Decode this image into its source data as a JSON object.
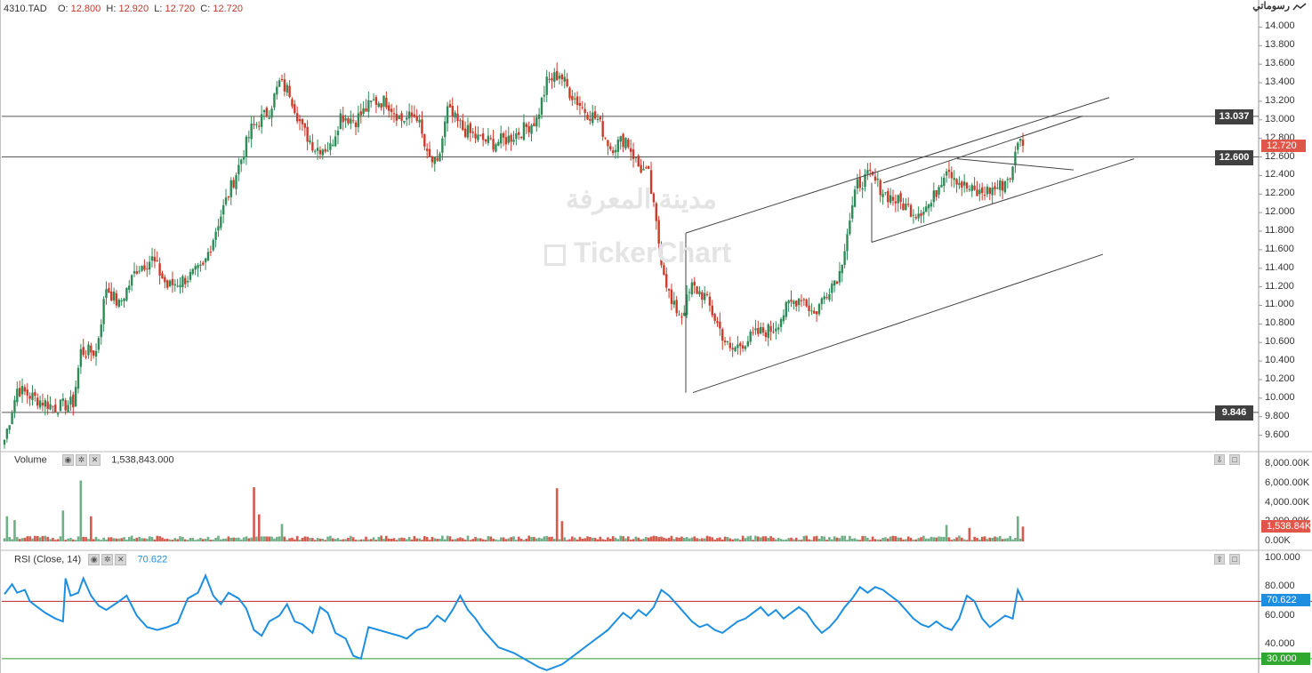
{
  "header": {
    "symbol": "4310.TAD",
    "open_label": "O:",
    "open": "12.800",
    "high_label": "H:",
    "high": "12.920",
    "low_label": "L:",
    "low": "12.720",
    "close_label": "C:",
    "close": "12.720"
  },
  "logo": {
    "text": "رسوماتي",
    "icon": "chart-line-icon"
  },
  "watermark": {
    "arabic": "مدينة المعرفة",
    "brand": "TickerChart",
    "icon": "tickerchart-logo-icon"
  },
  "chart_data": [
    {
      "type": "candlestick",
      "title": "",
      "price_axis": {
        "ticks": [
          "14.000",
          "13.800",
          "13.600",
          "13.400",
          "13.200",
          "13.000",
          "12.800",
          "12.600",
          "12.400",
          "12.200",
          "12.000",
          "11.800",
          "11.600",
          "11.400",
          "11.200",
          "11.000",
          "10.800",
          "10.600",
          "10.400",
          "10.200",
          "10.000",
          "9.800",
          "9.600"
        ],
        "range": [
          9.5,
          14.1
        ]
      },
      "horizontal_lines": [
        {
          "label": "13.037",
          "value": 13.037
        },
        {
          "label": "12.600",
          "value": 12.6
        },
        {
          "label": "9.846",
          "value": 9.846
        }
      ],
      "last_price": {
        "label": "12.720",
        "value": 12.72
      },
      "anchors": [
        {
          "i": 0,
          "c": 9.55
        },
        {
          "i": 5,
          "c": 10.1
        },
        {
          "i": 12,
          "c": 10.0
        },
        {
          "i": 20,
          "c": 9.9
        },
        {
          "i": 27,
          "c": 9.95
        },
        {
          "i": 30,
          "c": 10.5
        },
        {
          "i": 36,
          "c": 10.5
        },
        {
          "i": 40,
          "c": 11.2
        },
        {
          "i": 45,
          "c": 11.0
        },
        {
          "i": 52,
          "c": 11.4
        },
        {
          "i": 58,
          "c": 11.5
        },
        {
          "i": 64,
          "c": 11.2
        },
        {
          "i": 72,
          "c": 11.3
        },
        {
          "i": 78,
          "c": 11.4
        },
        {
          "i": 84,
          "c": 11.9
        },
        {
          "i": 92,
          "c": 12.5
        },
        {
          "i": 97,
          "c": 12.9
        },
        {
          "i": 104,
          "c": 13.1
        },
        {
          "i": 108,
          "c": 13.4
        },
        {
          "i": 112,
          "c": 13.3
        },
        {
          "i": 117,
          "c": 12.9
        },
        {
          "i": 122,
          "c": 12.7
        },
        {
          "i": 128,
          "c": 12.7
        },
        {
          "i": 132,
          "c": 13.05
        },
        {
          "i": 138,
          "c": 13.0
        },
        {
          "i": 145,
          "c": 13.2
        },
        {
          "i": 150,
          "c": 13.2
        },
        {
          "i": 156,
          "c": 13.0
        },
        {
          "i": 162,
          "c": 13.05
        },
        {
          "i": 166,
          "c": 12.6
        },
        {
          "i": 170,
          "c": 12.5
        },
        {
          "i": 174,
          "c": 13.1
        },
        {
          "i": 180,
          "c": 12.9
        },
        {
          "i": 186,
          "c": 12.8
        },
        {
          "i": 192,
          "c": 12.75
        },
        {
          "i": 198,
          "c": 12.8
        },
        {
          "i": 204,
          "c": 12.9
        },
        {
          "i": 209,
          "c": 13.0
        },
        {
          "i": 213,
          "c": 13.4
        },
        {
          "i": 218,
          "c": 13.5
        },
        {
          "i": 222,
          "c": 13.3
        },
        {
          "i": 228,
          "c": 13.1
        },
        {
          "i": 233,
          "c": 13.0
        },
        {
          "i": 238,
          "c": 12.7
        },
        {
          "i": 244,
          "c": 12.8
        },
        {
          "i": 249,
          "c": 12.5
        },
        {
          "i": 253,
          "c": 12.4
        },
        {
          "i": 258,
          "c": 11.5
        },
        {
          "i": 262,
          "c": 11.0
        },
        {
          "i": 266,
          "c": 10.9
        },
        {
          "i": 270,
          "c": 11.2
        },
        {
          "i": 275,
          "c": 11.1
        },
        {
          "i": 280,
          "c": 10.8
        },
        {
          "i": 285,
          "c": 10.5
        },
        {
          "i": 290,
          "c": 10.6
        },
        {
          "i": 296,
          "c": 10.7
        },
        {
          "i": 302,
          "c": 10.75
        },
        {
          "i": 308,
          "c": 11.0
        },
        {
          "i": 313,
          "c": 11.1
        },
        {
          "i": 318,
          "c": 10.9
        },
        {
          "i": 324,
          "c": 11.2
        },
        {
          "i": 328,
          "c": 11.35
        },
        {
          "i": 331,
          "c": 11.8
        },
        {
          "i": 335,
          "c": 12.3
        },
        {
          "i": 340,
          "c": 12.4
        },
        {
          "i": 346,
          "c": 12.2
        },
        {
          "i": 352,
          "c": 12.1
        },
        {
          "i": 358,
          "c": 12.0
        },
        {
          "i": 364,
          "c": 12.1
        },
        {
          "i": 370,
          "c": 12.5
        },
        {
          "i": 376,
          "c": 12.3
        },
        {
          "i": 382,
          "c": 12.2
        },
        {
          "i": 388,
          "c": 12.25
        },
        {
          "i": 392,
          "c": 12.3
        },
        {
          "i": 396,
          "c": 12.45
        },
        {
          "i": 398,
          "c": 12.8
        },
        {
          "i": 400,
          "c": 12.72
        }
      ]
    },
    {
      "type": "bar",
      "title": "Volume",
      "last_value_label": "1,538,843.000",
      "last_value_tag": "1,538.84K",
      "axis_ticks": [
        "8,000.00K",
        "6,000.00K",
        "4,000.00K",
        "2,000.00K",
        "0.00K"
      ],
      "range": [
        0,
        8000000
      ],
      "spikes": [
        {
          "i": 1,
          "v": 2600000
        },
        {
          "i": 4,
          "v": 2200000
        },
        {
          "i": 23,
          "v": 3200000
        },
        {
          "i": 30,
          "v": 6300000
        },
        {
          "i": 34,
          "v": 2600000
        },
        {
          "i": 98,
          "v": 5600000
        },
        {
          "i": 100,
          "v": 2800000
        },
        {
          "i": 109,
          "v": 1800000
        },
        {
          "i": 217,
          "v": 5500000
        },
        {
          "i": 219,
          "v": 2100000
        },
        {
          "i": 370,
          "v": 1700000
        },
        {
          "i": 379,
          "v": 1400000
        },
        {
          "i": 398,
          "v": 2600000
        },
        {
          "i": 400,
          "v": 1540000
        }
      ]
    },
    {
      "type": "line",
      "title": "RSI",
      "params": "(Close, 14)",
      "value_label": "70.622",
      "axis_ticks": [
        "100.000",
        "80.000",
        "60.000",
        "40.000"
      ],
      "range": [
        20,
        105
      ],
      "levels": [
        {
          "label": "70.000",
          "value": 70,
          "color": "#b52a2a",
          "tagged": false
        },
        {
          "label": "30.000",
          "value": 30,
          "color": "#2e9b2e",
          "tagged": true
        }
      ],
      "points": [
        {
          "i": 0,
          "v": 75
        },
        {
          "i": 3,
          "v": 82
        },
        {
          "i": 5,
          "v": 76
        },
        {
          "i": 8,
          "v": 78
        },
        {
          "i": 10,
          "v": 70
        },
        {
          "i": 13,
          "v": 66
        },
        {
          "i": 16,
          "v": 62
        },
        {
          "i": 20,
          "v": 58
        },
        {
          "i": 23,
          "v": 56
        },
        {
          "i": 24,
          "v": 86
        },
        {
          "i": 26,
          "v": 74
        },
        {
          "i": 29,
          "v": 76
        },
        {
          "i": 31,
          "v": 86
        },
        {
          "i": 34,
          "v": 74
        },
        {
          "i": 37,
          "v": 67
        },
        {
          "i": 40,
          "v": 64
        },
        {
          "i": 45,
          "v": 70
        },
        {
          "i": 48,
          "v": 74
        },
        {
          "i": 52,
          "v": 60
        },
        {
          "i": 56,
          "v": 52
        },
        {
          "i": 60,
          "v": 50
        },
        {
          "i": 64,
          "v": 52
        },
        {
          "i": 68,
          "v": 55
        },
        {
          "i": 72,
          "v": 72
        },
        {
          "i": 76,
          "v": 76
        },
        {
          "i": 79,
          "v": 88
        },
        {
          "i": 82,
          "v": 74
        },
        {
          "i": 85,
          "v": 68
        },
        {
          "i": 88,
          "v": 76
        },
        {
          "i": 92,
          "v": 72
        },
        {
          "i": 95,
          "v": 65
        },
        {
          "i": 98,
          "v": 50
        },
        {
          "i": 101,
          "v": 46
        },
        {
          "i": 104,
          "v": 56
        },
        {
          "i": 108,
          "v": 60
        },
        {
          "i": 111,
          "v": 68
        },
        {
          "i": 114,
          "v": 56
        },
        {
          "i": 117,
          "v": 54
        },
        {
          "i": 121,
          "v": 48
        },
        {
          "i": 124,
          "v": 66
        },
        {
          "i": 127,
          "v": 62
        },
        {
          "i": 130,
          "v": 48
        },
        {
          "i": 134,
          "v": 44
        },
        {
          "i": 137,
          "v": 32
        },
        {
          "i": 140,
          "v": 30
        },
        {
          "i": 143,
          "v": 52
        },
        {
          "i": 147,
          "v": 50
        },
        {
          "i": 151,
          "v": 48
        },
        {
          "i": 155,
          "v": 46
        },
        {
          "i": 158,
          "v": 44
        },
        {
          "i": 162,
          "v": 50
        },
        {
          "i": 166,
          "v": 52
        },
        {
          "i": 170,
          "v": 60
        },
        {
          "i": 173,
          "v": 56
        },
        {
          "i": 176,
          "v": 64
        },
        {
          "i": 179,
          "v": 74
        },
        {
          "i": 182,
          "v": 64
        },
        {
          "i": 185,
          "v": 58
        },
        {
          "i": 188,
          "v": 50
        },
        {
          "i": 191,
          "v": 44
        },
        {
          "i": 194,
          "v": 38
        },
        {
          "i": 197,
          "v": 36
        },
        {
          "i": 200,
          "v": 34
        },
        {
          "i": 204,
          "v": 30
        },
        {
          "i": 207,
          "v": 27
        },
        {
          "i": 210,
          "v": 24
        },
        {
          "i": 213,
          "v": 22
        },
        {
          "i": 216,
          "v": 24
        },
        {
          "i": 219,
          "v": 26
        },
        {
          "i": 222,
          "v": 30
        },
        {
          "i": 225,
          "v": 34
        },
        {
          "i": 228,
          "v": 38
        },
        {
          "i": 231,
          "v": 42
        },
        {
          "i": 234,
          "v": 46
        },
        {
          "i": 237,
          "v": 50
        },
        {
          "i": 240,
          "v": 56
        },
        {
          "i": 243,
          "v": 62
        },
        {
          "i": 246,
          "v": 58
        },
        {
          "i": 249,
          "v": 64
        },
        {
          "i": 252,
          "v": 60
        },
        {
          "i": 255,
          "v": 66
        },
        {
          "i": 258,
          "v": 78
        },
        {
          "i": 261,
          "v": 74
        },
        {
          "i": 264,
          "v": 68
        },
        {
          "i": 267,
          "v": 62
        },
        {
          "i": 270,
          "v": 56
        },
        {
          "i": 273,
          "v": 52
        },
        {
          "i": 276,
          "v": 54
        },
        {
          "i": 279,
          "v": 50
        },
        {
          "i": 282,
          "v": 48
        },
        {
          "i": 285,
          "v": 52
        },
        {
          "i": 288,
          "v": 56
        },
        {
          "i": 291,
          "v": 58
        },
        {
          "i": 294,
          "v": 62
        },
        {
          "i": 297,
          "v": 66
        },
        {
          "i": 300,
          "v": 60
        },
        {
          "i": 303,
          "v": 64
        },
        {
          "i": 306,
          "v": 58
        },
        {
          "i": 309,
          "v": 62
        },
        {
          "i": 312,
          "v": 66
        },
        {
          "i": 315,
          "v": 62
        },
        {
          "i": 318,
          "v": 54
        },
        {
          "i": 321,
          "v": 48
        },
        {
          "i": 324,
          "v": 52
        },
        {
          "i": 327,
          "v": 58
        },
        {
          "i": 330,
          "v": 66
        },
        {
          "i": 333,
          "v": 72
        },
        {
          "i": 336,
          "v": 80
        },
        {
          "i": 339,
          "v": 76
        },
        {
          "i": 342,
          "v": 80
        },
        {
          "i": 345,
          "v": 78
        },
        {
          "i": 348,
          "v": 74
        },
        {
          "i": 351,
          "v": 70
        },
        {
          "i": 354,
          "v": 64
        },
        {
          "i": 357,
          "v": 58
        },
        {
          "i": 360,
          "v": 54
        },
        {
          "i": 363,
          "v": 52
        },
        {
          "i": 366,
          "v": 56
        },
        {
          "i": 369,
          "v": 52
        },
        {
          "i": 372,
          "v": 50
        },
        {
          "i": 375,
          "v": 58
        },
        {
          "i": 378,
          "v": 74
        },
        {
          "i": 381,
          "v": 70
        },
        {
          "i": 384,
          "v": 58
        },
        {
          "i": 387,
          "v": 52
        },
        {
          "i": 390,
          "v": 56
        },
        {
          "i": 393,
          "v": 60
        },
        {
          "i": 396,
          "v": 58
        },
        {
          "i": 398,
          "v": 78
        },
        {
          "i": 400,
          "v": 70.6
        }
      ]
    }
  ],
  "colors": {
    "up": "#2e8b57",
    "down": "#cc3a2a",
    "rsi": "#1e8fe0",
    "tag_dark": "#404040",
    "last_price_tag": "#e0574a",
    "volume_tag": "#e0574a",
    "rsi_tag": "#1e8fe0",
    "level_30_tag": "#2ea82e"
  }
}
